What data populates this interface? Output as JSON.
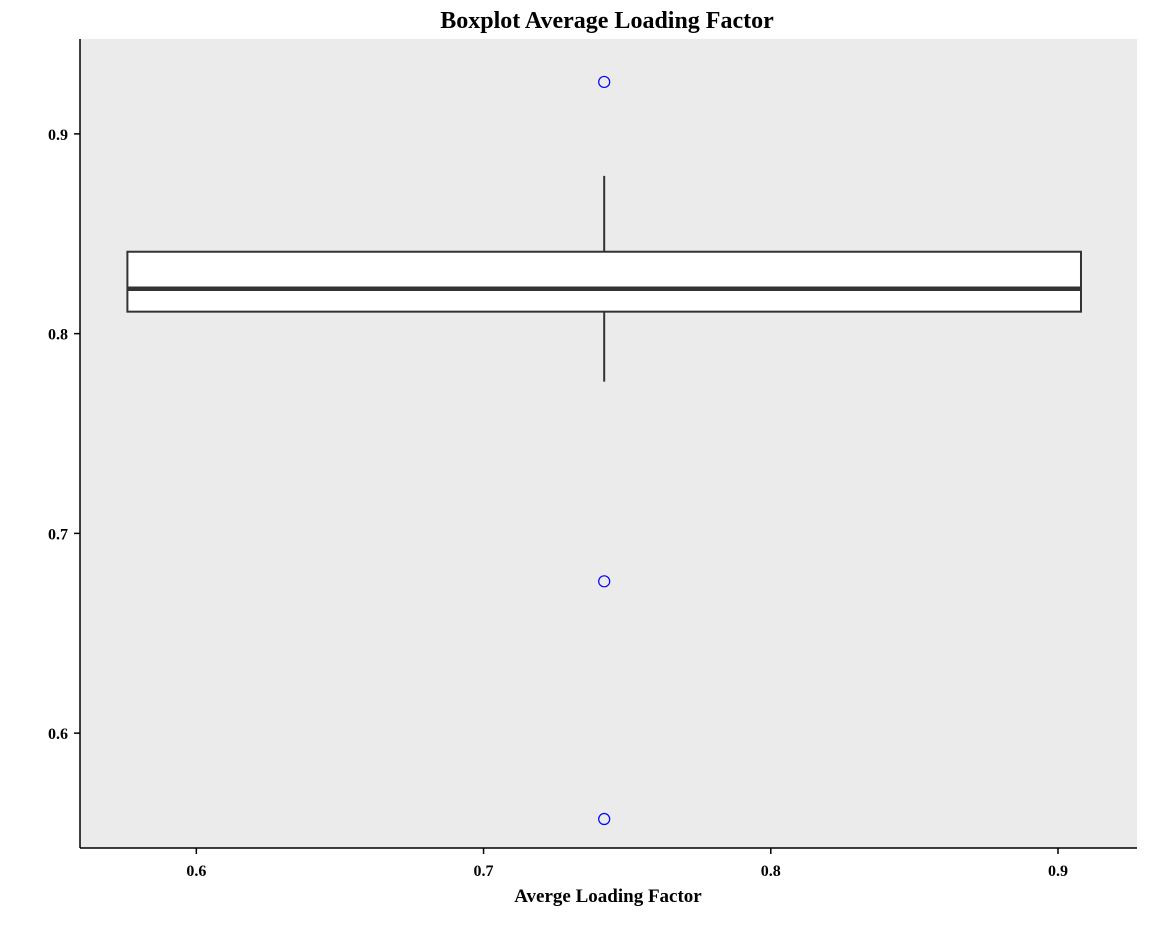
{
  "chart_data": {
    "type": "boxplot",
    "title": "Boxplot Average Loading Factor",
    "xlabel": "Averge Loading Factor",
    "ylabel": "",
    "xlim": [
      0.5595,
      0.9275
    ],
    "ylim": [
      0.5425,
      0.9475
    ],
    "x_ticks": [
      {
        "value": 0.6,
        "label": "0.6"
      },
      {
        "value": 0.7,
        "label": "0.7"
      },
      {
        "value": 0.8,
        "label": "0.8"
      },
      {
        "value": 0.9,
        "label": "0.9"
      }
    ],
    "y_ticks": [
      {
        "value": 0.6,
        "label": "0.6"
      },
      {
        "value": 0.7,
        "label": "0.7"
      },
      {
        "value": 0.8,
        "label": "0.8"
      },
      {
        "value": 0.9,
        "label": "0.9"
      }
    ],
    "box": {
      "x_left": 0.576,
      "x_right": 0.908,
      "x_center": 0.742,
      "q1": 0.811,
      "median": 0.8225,
      "q3": 0.841,
      "whisker_low": 0.776,
      "whisker_high": 0.879
    },
    "outliers": [
      0.926,
      0.676,
      0.557
    ],
    "grid": false,
    "colors": {
      "panel_background": "#ebebeb",
      "box_fill": "#ffffff",
      "box_stroke": "#333333",
      "median_line": "#333333",
      "outlier_stroke": "#0000ff"
    }
  }
}
